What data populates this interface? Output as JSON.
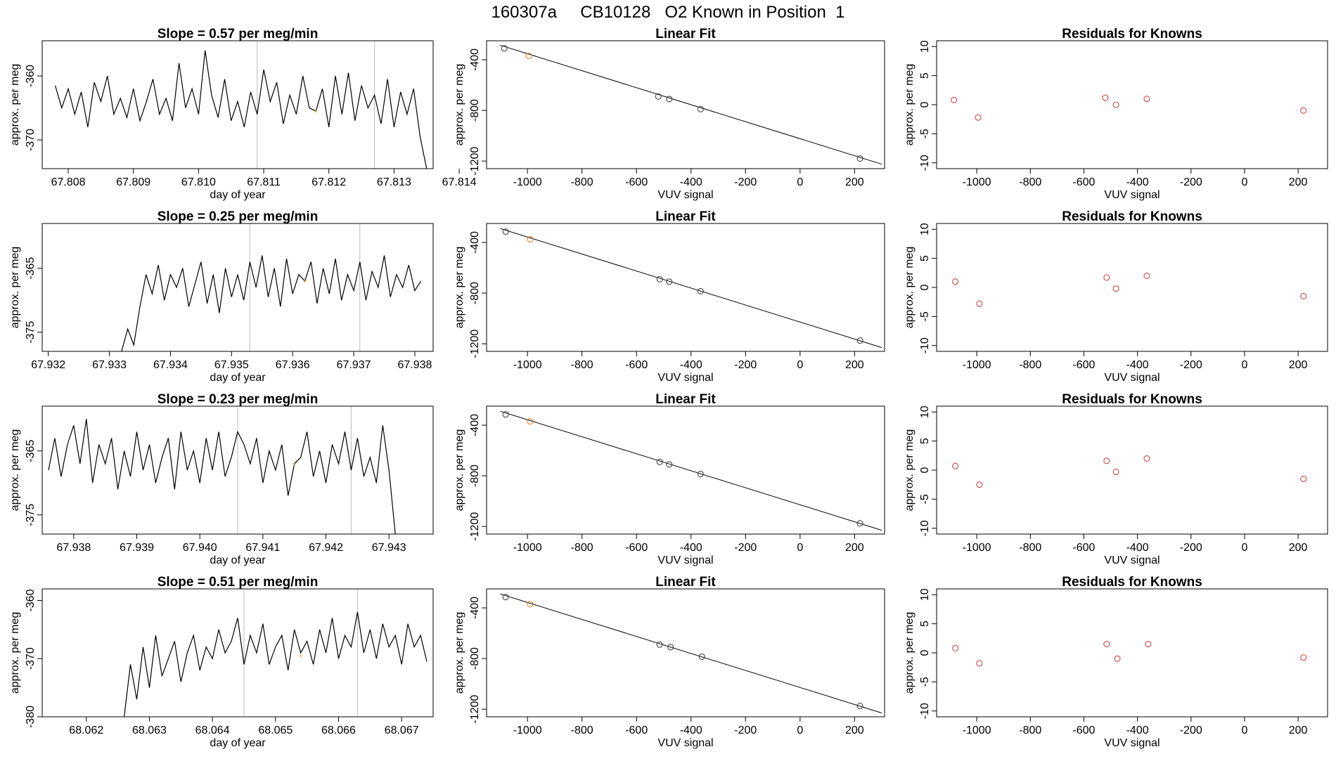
{
  "page_title": "160307a     CB10128   O2 Known in Position  1",
  "colors": {
    "trace": "#000000",
    "marker": "#f0a020",
    "residual_point": "#cc4444",
    "fit_point": "#444444",
    "known_point": "#e08020",
    "vline": "#bbbbbb",
    "fit_line": "#000000"
  },
  "chart_data": [
    {
      "type": "line",
      "title": "Slope =  0.57  per meg/min",
      "xlabel": "day of year",
      "ylabel": "approx. per meg",
      "xlim": [
        67.8076,
        67.8136
      ],
      "ylim": [
        -374.5,
        -354.5
      ],
      "xticks": [
        "67.808",
        "67.809",
        "67.810",
        "67.811",
        "67.812",
        "67.813",
        "67.814"
      ],
      "xtick_values": [
        67.808,
        67.809,
        67.81,
        67.811,
        67.812,
        67.813,
        67.814
      ],
      "yticks": [
        "-360",
        "-370"
      ],
      "ytick_values": [
        -360,
        -370
      ],
      "vlines": [
        67.8109,
        67.8127
      ],
      "marker": [
        67.8118,
        -365.5
      ],
      "x": [
        67.8078,
        67.8079,
        67.808,
        67.8081,
        67.8082,
        67.8083,
        67.8084,
        67.8085,
        67.8086,
        67.8087,
        67.8088,
        67.8089,
        67.809,
        67.8091,
        67.8092,
        67.8093,
        67.8094,
        67.8095,
        67.8096,
        67.8097,
        67.8098,
        67.8099,
        67.81,
        67.8101,
        67.8102,
        67.8103,
        67.8104,
        67.8105,
        67.8106,
        67.8107,
        67.8108,
        67.8109,
        67.811,
        67.8111,
        67.8112,
        67.8113,
        67.8114,
        67.8115,
        67.8116,
        67.8117,
        67.8118,
        67.8119,
        67.812,
        67.8121,
        67.8122,
        67.8123,
        67.8124,
        67.8125,
        67.8126,
        67.8127,
        67.8128,
        67.8129,
        67.813,
        67.8131,
        67.8132,
        67.8133,
        67.8134,
        67.8135
      ],
      "y": [
        -361.5,
        -365,
        -362,
        -366,
        -362.5,
        -368,
        -361,
        -364,
        -360,
        -366,
        -363.5,
        -366.5,
        -362,
        -367,
        -364,
        -360.5,
        -366,
        -363.5,
        -367,
        -358,
        -365,
        -362,
        -366,
        -356,
        -363,
        -366.5,
        -360.5,
        -367,
        -364,
        -368,
        -362.5,
        -366,
        -359,
        -364,
        -361,
        -367.5,
        -363,
        -366,
        -360,
        -365,
        -365.5,
        -362,
        -368,
        -360,
        -366,
        -359.5,
        -367,
        -361.5,
        -365,
        -363,
        -367.5,
        -360.5,
        -368,
        -362.5,
        -366,
        -362,
        -369.5,
        -374.5
      ]
    },
    {
      "type": "scatter",
      "title": "Linear Fit",
      "xlabel": "VUV signal",
      "ylabel": "approx. per meg",
      "xlim": [
        -1150,
        310
      ],
      "ylim": [
        -1260,
        -250
      ],
      "xticks": [
        "-1000",
        "-800",
        "-600",
        "-400",
        "-200",
        "0",
        "200"
      ],
      "xtick_values": [
        -1000,
        -800,
        -600,
        -400,
        -200,
        0,
        200
      ],
      "yticks": [
        "-400",
        "-800",
        "-1200"
      ],
      "ytick_values": [
        -400,
        -800,
        -1200
      ],
      "x": [
        -1085,
        -995,
        -520,
        -480,
        -365,
        220
      ],
      "y": [
        -310,
        -370,
        -690,
        -710,
        -790,
        -1180
      ],
      "highlight_x": -995,
      "fit_line": {
        "x": [
          -1100,
          300
        ],
        "y": [
          -285,
          -1225
        ]
      }
    },
    {
      "type": "scatter",
      "title": "Residuals for Knowns",
      "xlabel": "VUV signal",
      "ylabel": "approx. per meg",
      "xlim": [
        -1150,
        310
      ],
      "ylim": [
        -11,
        11
      ],
      "xticks": [
        "-1000",
        "-800",
        "-600",
        "-400",
        "-200",
        "0",
        "200"
      ],
      "xtick_values": [
        -1000,
        -800,
        -600,
        -400,
        -200,
        0,
        200
      ],
      "yticks": [
        "10",
        "5",
        "0",
        "-5",
        "-10"
      ],
      "ytick_values": [
        10,
        5,
        0,
        -5,
        -10
      ],
      "x": [
        -1085,
        -995,
        -520,
        -480,
        -365,
        220
      ],
      "y": [
        0.8,
        -2.2,
        1.2,
        0,
        1,
        -1
      ]
    },
    {
      "type": "line",
      "title": "Slope =  0.25  per meg/min",
      "xlabel": "day of year",
      "ylabel": "approx. per meg",
      "xlim": [
        67.9319,
        67.9383
      ],
      "ylim": [
        -378,
        -358
      ],
      "xticks": [
        "67.932",
        "67.933",
        "67.934",
        "67.935",
        "67.936",
        "67.937",
        "67.938"
      ],
      "xtick_values": [
        67.932,
        67.933,
        67.934,
        67.935,
        67.936,
        67.937,
        67.938
      ],
      "yticks": [
        "-365",
        "-375"
      ],
      "ytick_values": [
        -365,
        -375
      ],
      "vlines": [
        67.9353,
        67.9371
      ],
      "marker": [
        67.9362,
        -367
      ],
      "x": [
        67.9332,
        67.9333,
        67.9334,
        67.9335,
        67.9336,
        67.9337,
        67.9338,
        67.9339,
        67.934,
        67.9341,
        67.9342,
        67.9343,
        67.9344,
        67.9345,
        67.9346,
        67.9347,
        67.9348,
        67.9349,
        67.935,
        67.9351,
        67.9352,
        67.9353,
        67.9354,
        67.9355,
        67.9356,
        67.9357,
        67.9358,
        67.9359,
        67.936,
        67.9361,
        67.9362,
        67.9363,
        67.9364,
        67.9365,
        67.9366,
        67.9367,
        67.9368,
        67.9369,
        67.937,
        67.9371,
        67.9372,
        67.9373,
        67.9374,
        67.9375,
        67.9376,
        67.9377,
        67.9378,
        67.9379,
        67.938,
        67.9381
      ],
      "y": [
        -378,
        -374.5,
        -377,
        -371,
        -366,
        -369,
        -364.5,
        -370,
        -366,
        -368,
        -365,
        -371,
        -367.5,
        -364,
        -370.5,
        -366,
        -372,
        -365,
        -369.5,
        -366,
        -370,
        -364,
        -368,
        -363,
        -369.5,
        -365,
        -371,
        -363.5,
        -369,
        -366,
        -367,
        -364,
        -370.5,
        -365,
        -369,
        -363.5,
        -370,
        -366,
        -368.5,
        -364,
        -370,
        -365.5,
        -368,
        -363,
        -369.5,
        -366,
        -368,
        -364.5,
        -368.5,
        -367
      ]
    },
    {
      "type": "scatter",
      "title": "Linear Fit",
      "xlabel": "VUV signal",
      "ylabel": "approx. per meg",
      "xlim": [
        -1150,
        310
      ],
      "ylim": [
        -1260,
        -250
      ],
      "xticks": [
        "-1000",
        "-800",
        "-600",
        "-400",
        "-200",
        "0",
        "200"
      ],
      "xtick_values": [
        -1000,
        -800,
        -600,
        -400,
        -200,
        0,
        200
      ],
      "yticks": [
        "-400",
        "-800",
        "-1200"
      ],
      "ytick_values": [
        -400,
        -800,
        -1200
      ],
      "x": [
        -1080,
        -990,
        -515,
        -480,
        -365,
        220
      ],
      "y": [
        -315,
        -375,
        -690,
        -710,
        -785,
        -1175
      ],
      "highlight_x": -990,
      "fit_line": {
        "x": [
          -1100,
          300
        ],
        "y": [
          -290,
          -1230
        ]
      }
    },
    {
      "type": "scatter",
      "title": "Residuals for Knowns",
      "xlabel": "VUV signal",
      "ylabel": "approx. per meg",
      "xlim": [
        -1150,
        310
      ],
      "ylim": [
        -11,
        11
      ],
      "xticks": [
        "-1000",
        "-800",
        "-600",
        "-400",
        "-200",
        "0",
        "200"
      ],
      "xtick_values": [
        -1000,
        -800,
        -600,
        -400,
        -200,
        0,
        200
      ],
      "yticks": [
        "10",
        "5",
        "0",
        "-5",
        "-10"
      ],
      "ytick_values": [
        10,
        5,
        0,
        -5,
        -10
      ],
      "x": [
        -1080,
        -990,
        -515,
        -480,
        -365,
        220
      ],
      "y": [
        1,
        -2.8,
        1.7,
        -0.2,
        2,
        -1.5
      ]
    },
    {
      "type": "line",
      "title": "Slope =  0.23  per meg/min",
      "xlabel": "day of year",
      "ylabel": "approx. per meg",
      "xlim": [
        67.9375,
        67.9437
      ],
      "ylim": [
        -378,
        -358
      ],
      "xticks": [
        "67.938",
        "67.939",
        "67.940",
        "67.941",
        "67.942",
        "67.943"
      ],
      "xtick_values": [
        67.938,
        67.939,
        67.94,
        67.941,
        67.942,
        67.943
      ],
      "yticks": [
        "-365",
        "-375"
      ],
      "ytick_values": [
        -365,
        -375
      ],
      "vlines": [
        67.9406,
        67.9424
      ],
      "marker": [
        67.9415,
        -367
      ],
      "x": [
        67.9376,
        67.9377,
        67.9378,
        67.9379,
        67.938,
        67.9381,
        67.9382,
        67.9383,
        67.9384,
        67.9385,
        67.9386,
        67.9387,
        67.9388,
        67.9389,
        67.939,
        67.9391,
        67.9392,
        67.9393,
        67.9394,
        67.9395,
        67.9396,
        67.9397,
        67.9398,
        67.9399,
        67.94,
        67.9401,
        67.9402,
        67.9403,
        67.9404,
        67.9405,
        67.9406,
        67.9407,
        67.9408,
        67.9409,
        67.941,
        67.9411,
        67.9412,
        67.9413,
        67.9414,
        67.9415,
        67.9416,
        67.9417,
        67.9418,
        67.9419,
        67.942,
        67.9421,
        67.9422,
        67.9423,
        67.9424,
        67.9425,
        67.9426,
        67.9427,
        67.9428,
        67.9429,
        67.943,
        67.9431
      ],
      "y": [
        -368,
        -363,
        -369,
        -364,
        -361,
        -367,
        -360,
        -370,
        -364,
        -367,
        -363,
        -371,
        -365,
        -369,
        -362,
        -368,
        -364,
        -370,
        -366,
        -363,
        -371,
        -362,
        -368,
        -365,
        -370,
        -363,
        -368,
        -362,
        -369,
        -366,
        -362,
        -364,
        -367,
        -363,
        -370,
        -365,
        -368,
        -364,
        -372,
        -367,
        -366,
        -362,
        -369,
        -365,
        -370,
        -364,
        -367,
        -362,
        -368,
        -363,
        -369,
        -366,
        -370,
        -361,
        -368,
        -378
      ]
    },
    {
      "type": "scatter",
      "title": "Linear Fit",
      "xlabel": "VUV signal",
      "ylabel": "approx. per meg",
      "xlim": [
        -1150,
        310
      ],
      "ylim": [
        -1260,
        -250
      ],
      "xticks": [
        "-1000",
        "-800",
        "-600",
        "-400",
        "-200",
        "0",
        "200"
      ],
      "xtick_values": [
        -1000,
        -800,
        -600,
        -400,
        -200,
        0,
        200
      ],
      "yticks": [
        "-400",
        "-800",
        "-1200"
      ],
      "ytick_values": [
        -400,
        -800,
        -1200
      ],
      "x": [
        -1080,
        -990,
        -515,
        -480,
        -365,
        220
      ],
      "y": [
        -315,
        -370,
        -690,
        -710,
        -785,
        -1175
      ],
      "highlight_x": -990,
      "fit_line": {
        "x": [
          -1100,
          300
        ],
        "y": [
          -290,
          -1230
        ]
      }
    },
    {
      "type": "scatter",
      "title": "Residuals for Knowns",
      "xlabel": "VUV signal",
      "ylabel": "approx. per meg",
      "xlim": [
        -1150,
        310
      ],
      "ylim": [
        -11,
        11
      ],
      "xticks": [
        "-1000",
        "-800",
        "-600",
        "-400",
        "-200",
        "0",
        "200"
      ],
      "xtick_values": [
        -1000,
        -800,
        -600,
        -400,
        -200,
        0,
        200
      ],
      "yticks": [
        "10",
        "5",
        "0",
        "-5",
        "-10"
      ],
      "ytick_values": [
        10,
        5,
        0,
        -5,
        -10
      ],
      "x": [
        -1080,
        -990,
        -515,
        -480,
        -365,
        220
      ],
      "y": [
        0.7,
        -2.5,
        1.6,
        -0.3,
        2,
        -1.5
      ]
    },
    {
      "type": "line",
      "title": "Slope =  0.51  per meg/min",
      "xlabel": "day of year",
      "ylabel": "approx. per meg",
      "xlim": [
        68.0613,
        68.0675
      ],
      "ylim": [
        -380,
        -358
      ],
      "xticks": [
        "68.062",
        "68.063",
        "68.064",
        "68.065",
        "68.066",
        "68.067"
      ],
      "xtick_values": [
        68.062,
        68.063,
        68.064,
        68.065,
        68.066,
        68.067
      ],
      "yticks": [
        "-360",
        "-370",
        "-380"
      ],
      "ytick_values": [
        -360,
        -370,
        -380
      ],
      "vlines": [
        68.0645,
        68.0663
      ],
      "marker": [
        68.0654,
        -369.5
      ],
      "x": [
        68.0626,
        68.0627,
        68.0628,
        68.0629,
        68.063,
        68.0631,
        68.0632,
        68.0633,
        68.0634,
        68.0635,
        68.0636,
        68.0637,
        68.0638,
        68.0639,
        68.064,
        68.0641,
        68.0642,
        68.0643,
        68.0644,
        68.0645,
        68.0646,
        68.0647,
        68.0648,
        68.0649,
        68.065,
        68.0651,
        68.0652,
        68.0653,
        68.0654,
        68.0655,
        68.0656,
        68.0657,
        68.0658,
        68.0659,
        68.066,
        68.0661,
        68.0662,
        68.0663,
        68.0664,
        68.0665,
        68.0666,
        68.0667,
        68.0668,
        68.0669,
        68.067,
        68.0671,
        68.0672,
        68.0673,
        68.0674
      ],
      "y": [
        -380,
        -371,
        -377,
        -368,
        -375,
        -366,
        -373,
        -370,
        -367,
        -374,
        -369,
        -366,
        -372,
        -368,
        -370,
        -365,
        -369,
        -367,
        -363,
        -371,
        -366,
        -369,
        -364,
        -371,
        -368,
        -366,
        -372,
        -365,
        -369,
        -367,
        -371,
        -365,
        -369,
        -363,
        -370,
        -366,
        -368,
        -362,
        -369,
        -365,
        -370,
        -364,
        -368,
        -366,
        -371,
        -364,
        -368,
        -366,
        -370.5
      ]
    },
    {
      "type": "scatter",
      "title": "Linear Fit",
      "xlabel": "VUV signal",
      "ylabel": "approx. per meg",
      "xlim": [
        -1150,
        310
      ],
      "ylim": [
        -1260,
        -250
      ],
      "xticks": [
        "-1000",
        "-800",
        "-600",
        "-400",
        "-200",
        "0",
        "200"
      ],
      "xtick_values": [
        -1000,
        -800,
        -600,
        -400,
        -200,
        0,
        200
      ],
      "yticks": [
        "-400",
        "-800",
        "-1200"
      ],
      "ytick_values": [
        -400,
        -800,
        -1200
      ],
      "x": [
        -1080,
        -990,
        -515,
        -475,
        -360,
        220
      ],
      "y": [
        -315,
        -370,
        -690,
        -710,
        -785,
        -1175
      ],
      "highlight_x": -990,
      "fit_line": {
        "x": [
          -1100,
          300
        ],
        "y": [
          -290,
          -1230
        ]
      }
    },
    {
      "type": "scatter",
      "title": "Residuals for Knowns",
      "xlabel": "VUV signal",
      "ylabel": "approx. per meg",
      "xlim": [
        -1150,
        310
      ],
      "ylim": [
        -11,
        11
      ],
      "xticks": [
        "-1000",
        "-800",
        "-600",
        "-400",
        "-200",
        "0",
        "200"
      ],
      "xtick_values": [
        -1000,
        -800,
        -600,
        -400,
        -200,
        0,
        200
      ],
      "yticks": [
        "10",
        "5",
        "0",
        "-5",
        "-10"
      ],
      "ytick_values": [
        10,
        5,
        0,
        -5,
        -10
      ],
      "x": [
        -1080,
        -990,
        -515,
        -475,
        -360,
        220
      ],
      "y": [
        0.8,
        -1.8,
        1.5,
        -1,
        1.5,
        -0.8
      ]
    }
  ]
}
